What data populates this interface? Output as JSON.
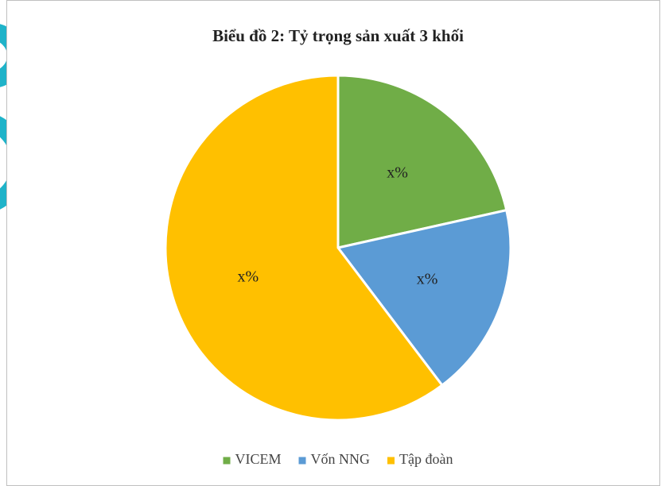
{
  "chart_data": {
    "type": "pie",
    "title": "Biểu đồ 2: Tỷ trọng sản xuất 3 khối",
    "categories": [
      "VICEM",
      "Vốn NNG",
      "Tập đoàn"
    ],
    "values": [
      21.5,
      18.2,
      60.3
    ],
    "value_labels": [
      "x%",
      "x%",
      "x%"
    ],
    "colors": [
      "#70ad47",
      "#5b9bd5",
      "#ffc000"
    ],
    "legend": "bottom"
  }
}
